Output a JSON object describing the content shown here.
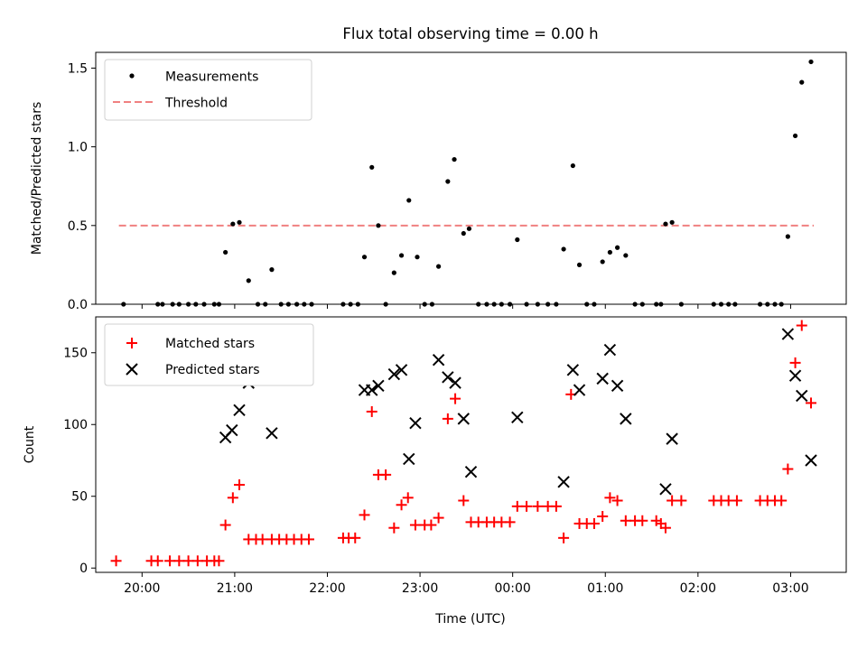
{
  "figure": {
    "title": "Flux total observing time = 0.00 h",
    "xlabel": "Time (UTC)",
    "x_tick_labels": [
      "20:00",
      "21:00",
      "22:00",
      "23:00",
      "00:00",
      "01:00",
      "02:00",
      "03:00"
    ]
  },
  "chart_data": [
    {
      "type": "scatter",
      "ylabel": "Matched/Predicted stars",
      "xlim": [
        19.5,
        27.6
      ],
      "ylim": [
        0,
        1.6
      ],
      "y_ticks": [
        0,
        0.5,
        1.0,
        1.5
      ],
      "y_tick_labels": [
        "0.0",
        "0.5",
        "1.0",
        "1.5"
      ],
      "legend_position": "top-left",
      "threshold": {
        "name": "Threshold",
        "value": 0.5,
        "x_start": 19.75,
        "x_end": 27.25,
        "color": "#f08080"
      },
      "series": [
        {
          "name": "Measurements",
          "marker": "dot",
          "color": "#000000",
          "points": [
            [
              19.8,
              0
            ],
            [
              20.17,
              0
            ],
            [
              20.22,
              0
            ],
            [
              20.33,
              0
            ],
            [
              20.4,
              0
            ],
            [
              20.5,
              0
            ],
            [
              20.58,
              0
            ],
            [
              20.67,
              0
            ],
            [
              20.78,
              0
            ],
            [
              20.83,
              0
            ],
            [
              20.9,
              0.33
            ],
            [
              20.98,
              0.51
            ],
            [
              21.05,
              0.52
            ],
            [
              21.15,
              0.15
            ],
            [
              21.25,
              0
            ],
            [
              21.33,
              0
            ],
            [
              21.4,
              0.22
            ],
            [
              21.5,
              0
            ],
            [
              21.58,
              0
            ],
            [
              21.67,
              0
            ],
            [
              21.75,
              0
            ],
            [
              21.83,
              0
            ],
            [
              22.17,
              0
            ],
            [
              22.25,
              0
            ],
            [
              22.33,
              0
            ],
            [
              22.4,
              0.3
            ],
            [
              22.48,
              0.87
            ],
            [
              22.55,
              0.5
            ],
            [
              22.63,
              0
            ],
            [
              22.72,
              0.2
            ],
            [
              22.8,
              0.31
            ],
            [
              22.88,
              0.66
            ],
            [
              22.97,
              0.3
            ],
            [
              23.05,
              0
            ],
            [
              23.13,
              0
            ],
            [
              23.2,
              0.24
            ],
            [
              23.3,
              0.78
            ],
            [
              23.37,
              0.92
            ],
            [
              23.47,
              0.45
            ],
            [
              23.53,
              0.48
            ],
            [
              23.63,
              0
            ],
            [
              23.72,
              0
            ],
            [
              23.8,
              0
            ],
            [
              23.88,
              0
            ],
            [
              23.97,
              0
            ],
            [
              24.05,
              0.41
            ],
            [
              24.15,
              0
            ],
            [
              24.27,
              0
            ],
            [
              24.38,
              0
            ],
            [
              24.47,
              0
            ],
            [
              24.55,
              0.35
            ],
            [
              24.65,
              0.88
            ],
            [
              24.72,
              0.25
            ],
            [
              24.8,
              0
            ],
            [
              24.88,
              0
            ],
            [
              24.97,
              0.27
            ],
            [
              25.05,
              0.33
            ],
            [
              25.13,
              0.36
            ],
            [
              25.22,
              0.31
            ],
            [
              25.32,
              0
            ],
            [
              25.4,
              0
            ],
            [
              25.55,
              0
            ],
            [
              25.6,
              0
            ],
            [
              25.65,
              0.51
            ],
            [
              25.72,
              0.52
            ],
            [
              25.82,
              0
            ],
            [
              26.17,
              0
            ],
            [
              26.25,
              0
            ],
            [
              26.33,
              0
            ],
            [
              26.4,
              0
            ],
            [
              26.67,
              0
            ],
            [
              26.75,
              0
            ],
            [
              26.83,
              0
            ],
            [
              26.9,
              0
            ],
            [
              26.97,
              0.43
            ],
            [
              27.05,
              1.07
            ],
            [
              27.12,
              1.41
            ],
            [
              27.22,
              1.54
            ]
          ]
        }
      ]
    },
    {
      "type": "scatter",
      "ylabel": "Count",
      "xlim": [
        19.5,
        27.6
      ],
      "ylim": [
        -3,
        175
      ],
      "y_ticks": [
        0,
        50,
        100,
        150
      ],
      "y_tick_labels": [
        "0",
        "50",
        "100",
        "150"
      ],
      "legend_position": "top-left",
      "series": [
        {
          "name": "Matched stars",
          "marker": "plus",
          "color": "#ff0000",
          "points": [
            [
              19.72,
              5
            ],
            [
              20.1,
              5
            ],
            [
              20.17,
              5
            ],
            [
              20.3,
              5
            ],
            [
              20.4,
              5
            ],
            [
              20.5,
              5
            ],
            [
              20.6,
              5
            ],
            [
              20.7,
              5
            ],
            [
              20.78,
              5
            ],
            [
              20.83,
              5
            ],
            [
              20.9,
              30
            ],
            [
              20.98,
              49
            ],
            [
              21.05,
              58
            ],
            [
              21.15,
              20
            ],
            [
              21.23,
              20
            ],
            [
              21.3,
              20
            ],
            [
              21.4,
              20
            ],
            [
              21.48,
              20
            ],
            [
              21.56,
              20
            ],
            [
              21.64,
              20
            ],
            [
              21.72,
              20
            ],
            [
              21.8,
              20
            ],
            [
              22.17,
              21
            ],
            [
              22.23,
              21
            ],
            [
              22.3,
              21
            ],
            [
              22.4,
              37
            ],
            [
              22.48,
              109
            ],
            [
              22.55,
              65
            ],
            [
              22.63,
              65
            ],
            [
              22.72,
              28
            ],
            [
              22.8,
              44
            ],
            [
              22.87,
              49
            ],
            [
              22.95,
              30
            ],
            [
              23.05,
              30
            ],
            [
              23.12,
              30
            ],
            [
              23.2,
              35
            ],
            [
              23.3,
              104
            ],
            [
              23.38,
              118
            ],
            [
              23.47,
              47
            ],
            [
              23.55,
              32
            ],
            [
              23.63,
              32
            ],
            [
              23.72,
              32
            ],
            [
              23.8,
              32
            ],
            [
              23.88,
              32
            ],
            [
              23.97,
              32
            ],
            [
              24.05,
              43
            ],
            [
              24.15,
              43
            ],
            [
              24.27,
              43
            ],
            [
              24.38,
              43
            ],
            [
              24.47,
              43
            ],
            [
              24.55,
              21
            ],
            [
              24.63,
              121
            ],
            [
              24.72,
              31
            ],
            [
              24.8,
              31
            ],
            [
              24.88,
              31
            ],
            [
              24.97,
              36
            ],
            [
              25.05,
              49
            ],
            [
              25.13,
              47
            ],
            [
              25.22,
              33
            ],
            [
              25.32,
              33
            ],
            [
              25.4,
              33
            ],
            [
              25.55,
              33
            ],
            [
              25.6,
              31
            ],
            [
              25.65,
              28
            ],
            [
              25.72,
              47
            ],
            [
              25.82,
              47
            ],
            [
              26.17,
              47
            ],
            [
              26.25,
              47
            ],
            [
              26.33,
              47
            ],
            [
              26.42,
              47
            ],
            [
              26.67,
              47
            ],
            [
              26.75,
              47
            ],
            [
              26.83,
              47
            ],
            [
              26.9,
              47
            ],
            [
              26.97,
              69
            ],
            [
              27.05,
              143
            ],
            [
              27.12,
              169
            ],
            [
              27.22,
              115
            ]
          ]
        },
        {
          "name": "Predicted stars",
          "marker": "x",
          "color": "#000000",
          "points": [
            [
              20.9,
              91
            ],
            [
              20.97,
              96
            ],
            [
              21.05,
              110
            ],
            [
              21.15,
              129
            ],
            [
              21.4,
              94
            ],
            [
              22.4,
              124
            ],
            [
              22.48,
              124
            ],
            [
              22.55,
              127
            ],
            [
              22.72,
              135
            ],
            [
              22.8,
              138
            ],
            [
              22.88,
              76
            ],
            [
              22.95,
              101
            ],
            [
              23.2,
              145
            ],
            [
              23.3,
              133
            ],
            [
              23.38,
              129
            ],
            [
              23.47,
              104
            ],
            [
              23.55,
              67
            ],
            [
              24.05,
              105
            ],
            [
              24.55,
              60
            ],
            [
              24.65,
              138
            ],
            [
              24.72,
              124
            ],
            [
              24.97,
              132
            ],
            [
              25.05,
              152
            ],
            [
              25.13,
              127
            ],
            [
              25.22,
              104
            ],
            [
              25.65,
              55
            ],
            [
              25.72,
              90
            ],
            [
              26.97,
              163
            ],
            [
              27.05,
              134
            ],
            [
              27.12,
              120
            ],
            [
              27.22,
              75
            ]
          ]
        }
      ]
    }
  ]
}
